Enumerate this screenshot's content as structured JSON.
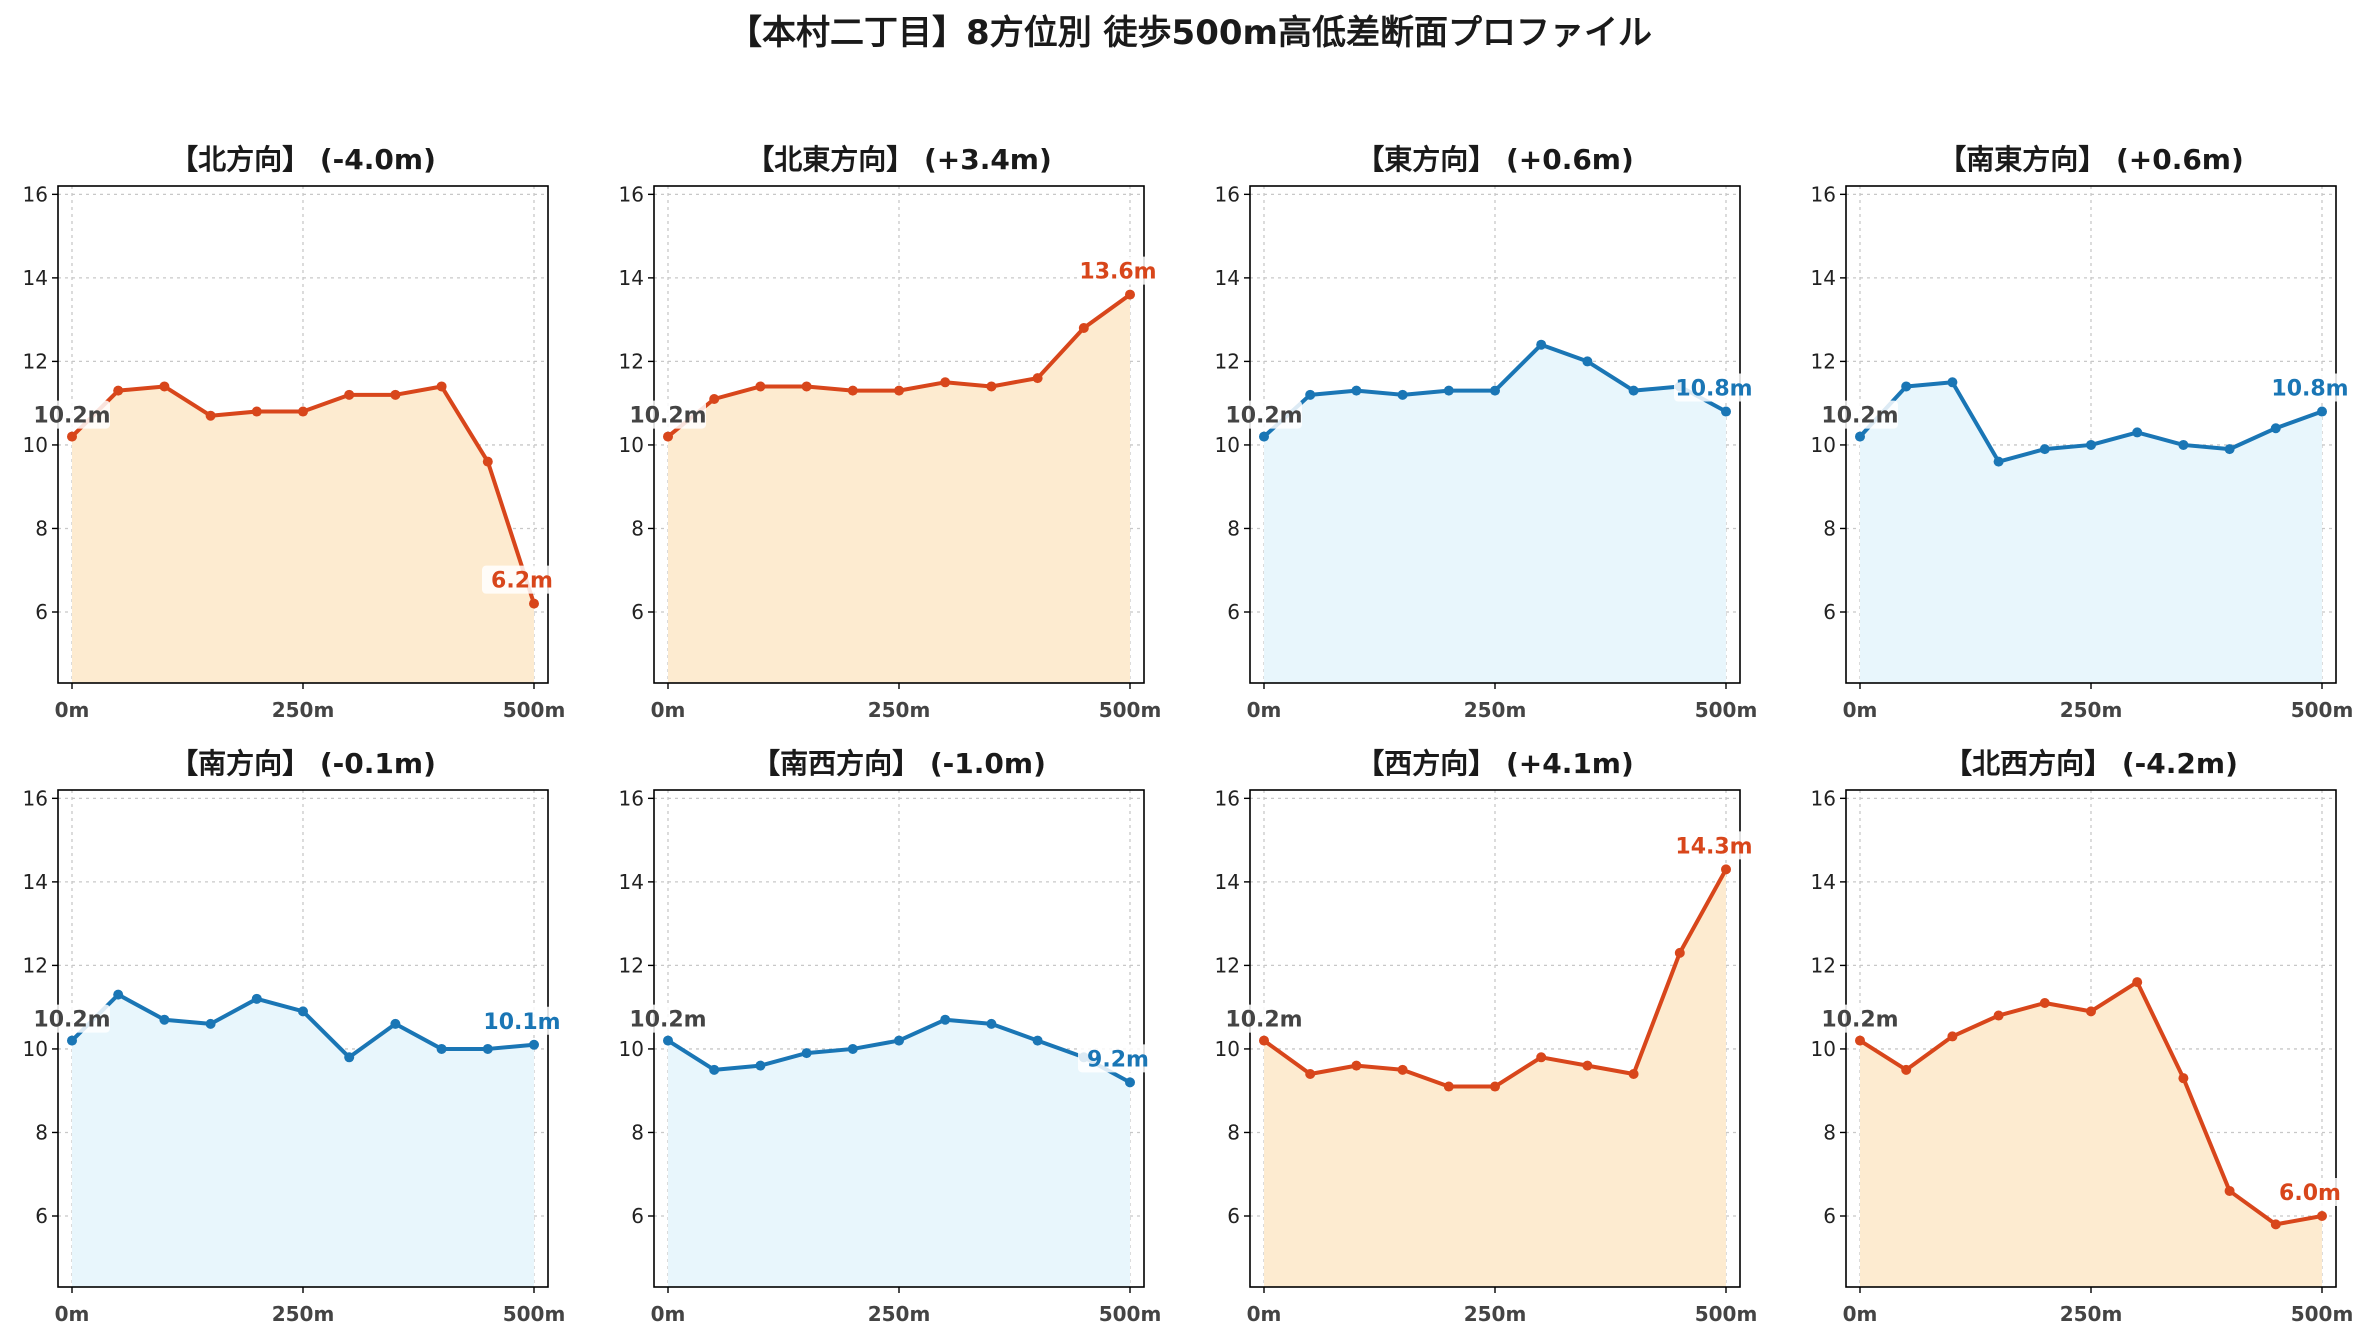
{
  "title": "【本村二丁目】8方位別 徒歩500m高低差断面プロファイル",
  "colors": {
    "up_line": "#d8461b",
    "up_fill": "#fdebd0",
    "down_line": "#1a76b5",
    "down_fill": "#e8f6fc"
  },
  "chart_data": [
    {
      "type": "area",
      "title": "【北方向】 (-4.0m)",
      "trend": "down",
      "x": [
        0,
        50,
        100,
        150,
        200,
        250,
        300,
        350,
        400,
        450,
        500
      ],
      "y": [
        10.2,
        11.3,
        11.4,
        10.7,
        10.8,
        10.8,
        11.2,
        11.2,
        11.4,
        9.6,
        6.2
      ],
      "start_label": "10.2m",
      "end_label": "6.2m",
      "xticks": [
        "0m",
        "250m",
        "500m"
      ],
      "ylim": [
        4.3,
        16.2
      ],
      "yticks": [
        6,
        8,
        10,
        12,
        14,
        16
      ],
      "grid": true
    },
    {
      "type": "area",
      "title": "【北東方向】 (+3.4m)",
      "trend": "up",
      "x": [
        0,
        50,
        100,
        150,
        200,
        250,
        300,
        350,
        400,
        450,
        500
      ],
      "y": [
        10.2,
        11.1,
        11.4,
        11.4,
        11.3,
        11.3,
        11.5,
        11.4,
        11.6,
        12.8,
        13.6
      ],
      "start_label": "10.2m",
      "end_label": "13.6m",
      "xticks": [
        "0m",
        "250m",
        "500m"
      ],
      "ylim": [
        4.3,
        16.2
      ],
      "yticks": [
        6,
        8,
        10,
        12,
        14,
        16
      ],
      "grid": true
    },
    {
      "type": "area",
      "title": "【東方向】 (+0.6m)",
      "trend": "up_small",
      "x": [
        0,
        50,
        100,
        150,
        200,
        250,
        300,
        350,
        400,
        450,
        500
      ],
      "y": [
        10.2,
        11.2,
        11.3,
        11.2,
        11.3,
        11.3,
        12.4,
        12.0,
        11.3,
        11.4,
        10.8
      ],
      "start_label": "10.2m",
      "end_label": "10.8m",
      "xticks": [
        "0m",
        "250m",
        "500m"
      ],
      "ylim": [
        4.3,
        16.2
      ],
      "yticks": [
        6,
        8,
        10,
        12,
        14,
        16
      ],
      "grid": true
    },
    {
      "type": "area",
      "title": "【南東方向】 (+0.6m)",
      "trend": "up_small",
      "x": [
        0,
        50,
        100,
        150,
        200,
        250,
        300,
        350,
        400,
        450,
        500
      ],
      "y": [
        10.2,
        11.4,
        11.5,
        9.6,
        9.9,
        10.0,
        10.3,
        10.0,
        9.9,
        10.4,
        10.8
      ],
      "start_label": "10.2m",
      "end_label": "10.8m",
      "xticks": [
        "0m",
        "250m",
        "500m"
      ],
      "ylim": [
        4.3,
        16.2
      ],
      "yticks": [
        6,
        8,
        10,
        12,
        14,
        16
      ],
      "grid": true
    },
    {
      "type": "area",
      "title": "【南方向】 (-0.1m)",
      "trend": "flat",
      "x": [
        0,
        50,
        100,
        150,
        200,
        250,
        300,
        350,
        400,
        450,
        500
      ],
      "y": [
        10.2,
        11.3,
        10.7,
        10.6,
        11.2,
        10.9,
        9.8,
        10.6,
        10.0,
        10.0,
        10.1
      ],
      "start_label": "10.2m",
      "end_label": "10.1m",
      "xticks": [
        "0m",
        "250m",
        "500m"
      ],
      "ylim": [
        4.3,
        16.2
      ],
      "yticks": [
        6,
        8,
        10,
        12,
        14,
        16
      ],
      "grid": true
    },
    {
      "type": "area",
      "title": "【南西方向】 (-1.0m)",
      "trend": "flat",
      "x": [
        0,
        50,
        100,
        150,
        200,
        250,
        300,
        350,
        400,
        450,
        500
      ],
      "y": [
        10.2,
        9.5,
        9.6,
        9.9,
        10.0,
        10.2,
        10.7,
        10.6,
        10.2,
        9.8,
        9.2
      ],
      "start_label": "10.2m",
      "end_label": "9.2m",
      "xticks": [
        "0m",
        "250m",
        "500m"
      ],
      "ylim": [
        4.3,
        16.2
      ],
      "yticks": [
        6,
        8,
        10,
        12,
        14,
        16
      ],
      "grid": true
    },
    {
      "type": "area",
      "title": "【西方向】 (+4.1m)",
      "trend": "up",
      "x": [
        0,
        50,
        100,
        150,
        200,
        250,
        300,
        350,
        400,
        450,
        500
      ],
      "y": [
        10.2,
        9.4,
        9.6,
        9.5,
        9.1,
        9.1,
        9.8,
        9.6,
        9.4,
        12.3,
        14.3
      ],
      "start_label": "10.2m",
      "end_label": "14.3m",
      "xticks": [
        "0m",
        "250m",
        "500m"
      ],
      "ylim": [
        4.3,
        16.2
      ],
      "yticks": [
        6,
        8,
        10,
        12,
        14,
        16
      ],
      "grid": true
    },
    {
      "type": "area",
      "title": "【北西方向】 (-4.2m)",
      "trend": "down",
      "x": [
        0,
        50,
        100,
        150,
        200,
        250,
        300,
        350,
        400,
        450,
        500
      ],
      "y": [
        10.2,
        9.5,
        10.3,
        10.8,
        11.1,
        10.9,
        11.6,
        9.3,
        6.6,
        5.8,
        6.0
      ],
      "start_label": "10.2m",
      "end_label": "6.0m",
      "xticks": [
        "0m",
        "250m",
        "500m"
      ],
      "ylim": [
        4.3,
        16.2
      ],
      "yticks": [
        6,
        8,
        10,
        12,
        14,
        16
      ],
      "grid": true
    }
  ]
}
